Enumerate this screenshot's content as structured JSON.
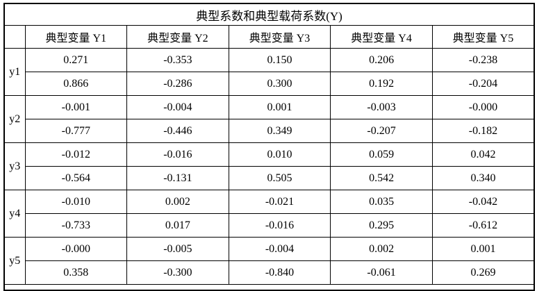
{
  "table": {
    "title": "典型系数和典型载荷系数(Y)",
    "corner": "",
    "col_headers": [
      "典型变量 Y1",
      "典型变量 Y2",
      "典型变量 Y3",
      "典型变量 Y4",
      "典型变量 Y5"
    ],
    "row_groups": [
      {
        "label": "y1",
        "rows": [
          [
            "0.271",
            "-0.353",
            "0.150",
            "0.206",
            "-0.238"
          ],
          [
            "0.866",
            "-0.286",
            "0.300",
            "0.192",
            "-0.204"
          ]
        ]
      },
      {
        "label": "y2",
        "rows": [
          [
            "-0.001",
            "-0.004",
            "0.001",
            "-0.003",
            "-0.000"
          ],
          [
            "-0.777",
            "-0.446",
            "0.349",
            "-0.207",
            "-0.182"
          ]
        ]
      },
      {
        "label": "y3",
        "rows": [
          [
            "-0.012",
            "-0.016",
            "0.010",
            "0.059",
            "0.042"
          ],
          [
            "-0.564",
            "-0.131",
            "0.505",
            "0.542",
            "0.340"
          ]
        ]
      },
      {
        "label": "y4",
        "rows": [
          [
            "-0.010",
            "0.002",
            "-0.021",
            "0.035",
            "-0.042"
          ],
          [
            "-0.733",
            "0.017",
            "-0.016",
            "0.295",
            "-0.612"
          ]
        ]
      },
      {
        "label": "y5",
        "rows": [
          [
            "-0.000",
            "-0.005",
            "-0.004",
            "0.002",
            "0.001"
          ],
          [
            "0.358",
            "-0.300",
            "-0.840",
            "-0.061",
            "0.269"
          ]
        ]
      }
    ],
    "colors": {
      "border": "#000000",
      "text": "#000000",
      "background": "#ffffff"
    }
  }
}
